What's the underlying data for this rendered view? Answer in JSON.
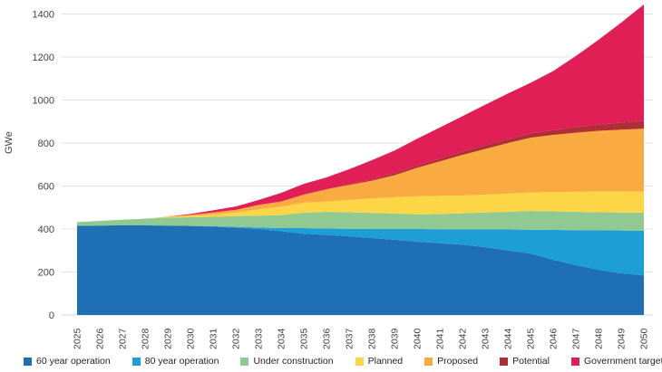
{
  "chart_data": {
    "type": "area",
    "stacked": true,
    "title": "",
    "xlabel": "",
    "ylabel": "GWe",
    "ylim": [
      0,
      1400
    ],
    "y_ticks": [
      0,
      200,
      400,
      600,
      800,
      1000,
      1200,
      1400
    ],
    "grid": "horizontal",
    "legend_position": "bottom",
    "x": [
      2025,
      2026,
      2027,
      2028,
      2029,
      2030,
      2031,
      2032,
      2033,
      2034,
      2035,
      2036,
      2037,
      2038,
      2039,
      2040,
      2041,
      2042,
      2043,
      2044,
      2045,
      2046,
      2047,
      2048,
      2049,
      2050
    ],
    "series": [
      {
        "name": "60 year operation",
        "color": "#1e6fb3",
        "values": [
          415,
          416,
          417,
          417,
          416,
          414,
          411,
          406,
          400,
          390,
          378,
          372,
          366,
          358,
          350,
          341,
          334,
          327,
          316,
          300,
          286,
          257,
          232,
          210,
          194,
          184
        ]
      },
      {
        "name": "80 year operation",
        "color": "#1d9fd6",
        "values": [
          0,
          0,
          0,
          0,
          0,
          0,
          2,
          4,
          7,
          14,
          26,
          30,
          35,
          42,
          50,
          59,
          65,
          71,
          82,
          98,
          111,
          139,
          163,
          184,
          199,
          208
        ]
      },
      {
        "name": "Under construction",
        "color": "#90ca92",
        "values": [
          17,
          22,
          26,
          31,
          37,
          41,
          44,
          50,
          55,
          61,
          72,
          78,
          77,
          75,
          72,
          68,
          71,
          75,
          79,
          82,
          87,
          86,
          85,
          84,
          84,
          84
        ]
      },
      {
        "name": "Planned",
        "color": "#fdd648",
        "values": [
          0,
          0,
          0,
          0,
          3,
          6,
          11,
          17,
          30,
          38,
          46,
          48,
          57,
          67,
          76,
          84,
          84,
          83,
          83,
          85,
          86,
          90,
          93,
          96,
          98,
          99
        ]
      },
      {
        "name": "Proposed",
        "color": "#f9ab42",
        "values": [
          0,
          0,
          0,
          0,
          2,
          5,
          9,
          12,
          20,
          25,
          38,
          57,
          70,
          83,
          102,
          133,
          161,
          189,
          212,
          235,
          255,
          266,
          275,
          283,
          287,
          292
        ]
      },
      {
        "name": "Potential",
        "color": "#b02e35",
        "values": [
          0,
          0,
          0,
          0,
          0,
          0,
          0,
          0,
          0,
          0,
          0,
          0,
          3,
          6,
          9,
          10,
          12,
          15,
          17,
          18,
          20,
          22,
          25,
          28,
          33,
          36
        ]
      },
      {
        "name": "Government target",
        "color": "#e01f56",
        "values": [
          0,
          0,
          0,
          0,
          0,
          4,
          10,
          16,
          23,
          40,
          50,
          55,
          70,
          89,
          106,
          125,
          145,
          165,
          189,
          212,
          235,
          275,
          332,
          395,
          465,
          542
        ]
      }
    ]
  },
  "style": {
    "grid_color": "#e3e3e3",
    "baseline_color": "#d6d6d6",
    "tick_label_color": "#414042",
    "axis_title_color": "#414042"
  }
}
